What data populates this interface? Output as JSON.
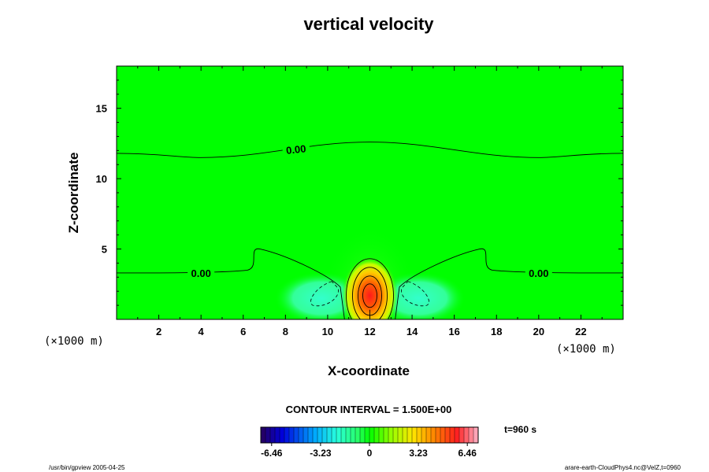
{
  "chart_data": {
    "type": "heatmap",
    "title": "vertical velocity",
    "xlabel": "X-coordinate",
    "ylabel": "Z-coordinate",
    "x_unit": "(×1000 m)",
    "y_unit": "(×1000 m)",
    "xlim": [
      0,
      24
    ],
    "ylim": [
      0,
      18
    ],
    "x_ticks": [
      "2",
      "4",
      "6",
      "8",
      "10",
      "12",
      "14",
      "16",
      "18",
      "20",
      "22"
    ],
    "y_ticks": [
      "5",
      "10",
      "15"
    ],
    "contour_labels": [
      "0.00",
      "0.00",
      "0.00"
    ],
    "contour_interval_text": "CONTOUR INTERVAL = 1.500E+00",
    "time_text": "t=960 s",
    "colorbar": {
      "min": -6.46,
      "max": 6.46,
      "ticks": [
        "-6.46",
        "-3.23",
        "0",
        "3.23",
        "6.46"
      ]
    },
    "features": {
      "updraft_center": [
        12,
        1.8
      ],
      "updraft_max": 6.3,
      "downdraft_left_center": [
        10,
        1.5
      ],
      "downdraft_right_center": [
        14,
        1.5
      ],
      "downdraft_min": -1.8,
      "upper_zero_contour_z": [
        11.8,
        11.5,
        12.6,
        11.5,
        11.8
      ]
    },
    "grid": false,
    "colors": {
      "background_field": "#00ff00",
      "max": "#ff0000",
      "min": "#1a0066"
    }
  },
  "footer": {
    "left": "/usr/bin/gpview 2005-04-25",
    "right": "arare-earth-CloudPhys4.nc@VelZ,t=0960"
  }
}
